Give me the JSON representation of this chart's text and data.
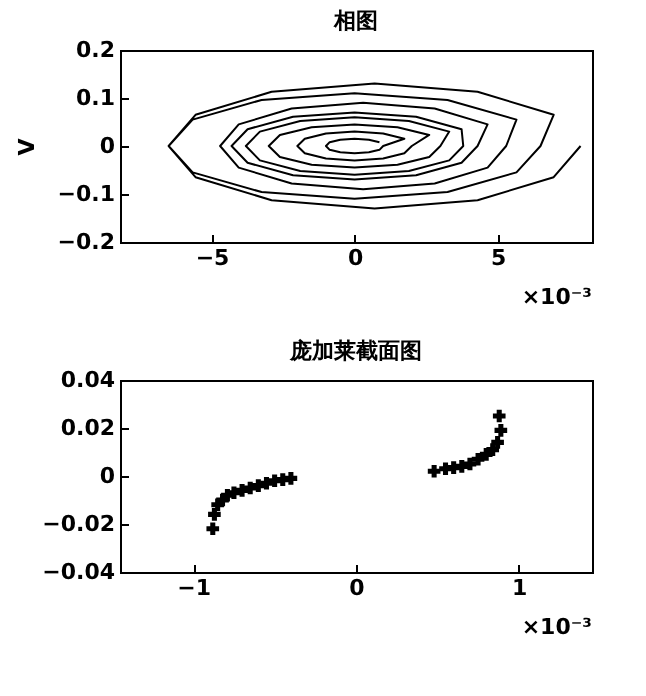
{
  "chart_data": [
    {
      "type": "line",
      "title": "相图",
      "ylabel": "V",
      "annotations": [
        "×10⁻³"
      ],
      "xlim": [
        -8.2,
        8.3
      ],
      "xticks": [
        -5,
        0,
        5
      ],
      "ylim": [
        -0.2,
        0.2
      ],
      "yticks": [
        -0.2,
        -0.1,
        0,
        0.1,
        0.2
      ],
      "grid": false,
      "marker": "none",
      "line_style": "solid",
      "series": [
        {
          "color": "#000000",
          "x": [
            7.9,
            6.96,
            4.3,
            0.7,
            -2.9,
            -5.56,
            -6.5,
            -5.56,
            -2.9,
            0.7,
            4.3,
            6.96,
            6.5,
            5.66,
            3.25,
            0,
            -3.25,
            -5.66,
            -6.5,
            -5.66,
            -3.25,
            0,
            3.25,
            5.66,
            5.3,
            4.65,
            2.8,
            0.3,
            -2.2,
            -4.05,
            -4.7,
            -4.05,
            -2.2,
            0.3,
            2.8,
            4.65,
            4.3,
            3.74,
            2.15,
            0,
            -2.15,
            -3.74,
            -4.3,
            -3.74,
            -2.15,
            0,
            2.15,
            3.74,
            3.8,
            3.31,
            1.9,
            0,
            -1.9,
            -3.31,
            -3.8,
            -3.31,
            -1.9,
            0,
            1.9,
            3.31,
            3,
            2.61,
            1.5,
            0,
            -1.5,
            -2.61,
            -3,
            -2.61,
            -1.5,
            0,
            1.5,
            2.61,
            2,
            1.74,
            1,
            0,
            -1,
            -1.74,
            -2,
            -1.74,
            -1,
            0,
            1,
            1.74,
            1,
            0.87,
            0.5,
            0,
            -0.5,
            -0.87,
            -1,
            -0.87,
            -0.5,
            0,
            0.5,
            0.87
          ],
          "values": [
            0,
            -0.065,
            -0.113,
            -0.13,
            -0.113,
            -0.065,
            0,
            0.065,
            0.113,
            0.13,
            0.113,
            0.065,
            0,
            -0.055,
            -0.096,
            -0.11,
            -0.096,
            -0.055,
            0,
            0.055,
            0.096,
            0.11,
            0.096,
            0.055,
            0,
            -0.045,
            -0.078,
            -0.09,
            -0.078,
            -0.045,
            0,
            0.045,
            0.078,
            0.09,
            0.078,
            0.045,
            0,
            -0.035,
            -0.061,
            -0.07,
            -0.061,
            -0.035,
            0,
            0.035,
            0.061,
            0.07,
            0.061,
            0.035,
            0,
            -0.03,
            -0.052,
            -0.06,
            -0.052,
            -0.03,
            0,
            0.03,
            0.052,
            0.06,
            0.052,
            0.03,
            0,
            -0.023,
            -0.039,
            -0.045,
            -0.039,
            -0.023,
            0,
            0.023,
            0.039,
            0.045,
            0.039,
            0.023,
            0,
            -0.015,
            -0.026,
            -0.03,
            -0.026,
            -0.015,
            0,
            0.015,
            0.026,
            0.03,
            0.026,
            0.015,
            0,
            -0.008,
            -0.013,
            -0.015,
            -0.013,
            -0.008,
            0,
            0.008,
            0.013,
            0.015,
            0.013,
            0.008
          ]
        }
      ]
    },
    {
      "type": "scatter",
      "title": "庞加莱截面图",
      "annotations": [
        "×10⁻³"
      ],
      "xlim": [
        -1.45,
        1.45
      ],
      "xticks": [
        -1,
        0,
        1
      ],
      "ylim": [
        -0.04,
        0.04
      ],
      "yticks": [
        -0.04,
        -0.02,
        0,
        0.02,
        0.04
      ],
      "grid": false,
      "marker": "cross",
      "series": [
        {
          "color": "#000000",
          "x": [
            -0.88,
            -0.87,
            -0.85,
            -0.82,
            -0.79,
            -0.75,
            -0.7,
            -0.65,
            -0.6,
            -0.55,
            -0.5,
            -0.45,
            -0.4,
            0.48,
            0.55,
            0.6,
            0.65,
            0.7,
            0.75,
            0.8,
            0.84,
            0.87,
            0.89,
            0.88
          ],
          "values": [
            -0.022,
            -0.016,
            -0.012,
            -0.01,
            -0.008,
            -0.007,
            -0.006,
            -0.005,
            -0.004,
            -0.003,
            -0.002,
            -0.0015,
            -0.001,
            0.002,
            0.003,
            0.0035,
            0.004,
            0.005,
            0.007,
            0.009,
            0.011,
            0.014,
            0.019,
            0.025
          ]
        }
      ]
    }
  ]
}
